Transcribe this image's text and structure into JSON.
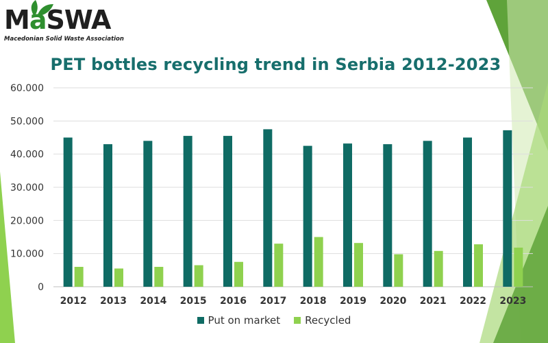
{
  "logo": {
    "text_before": "M",
    "text_highlight": "a",
    "text_after": "SWA",
    "subtitle": "Macedonian Solid Waste Association"
  },
  "colors": {
    "put_on_market": "#0f6b64",
    "recycled": "#8fd14f",
    "title": "#176e6c",
    "grid": "#dddddd",
    "deco_dark": "#5fa33a",
    "deco_light": "#a9d97a"
  },
  "chart_data": {
    "type": "bar",
    "title": "PET bottles recycling trend in Serbia 2012-2023",
    "xlabel": "",
    "ylabel": "",
    "ylim": [
      0,
      60000
    ],
    "yticks": [
      "0",
      "10.000",
      "20.000",
      "30.000",
      "40.000",
      "50.000",
      "60.000"
    ],
    "grid": true,
    "legend_position": "bottom",
    "categories": [
      "2012",
      "2013",
      "2014",
      "2015",
      "2016",
      "2017",
      "2018",
      "2019",
      "2020",
      "2021",
      "2022",
      "2023"
    ],
    "series": [
      {
        "name": "Put on market",
        "values": [
          45000,
          43000,
          44000,
          45500,
          45500,
          47500,
          42500,
          43200,
          43000,
          44000,
          45000,
          47200
        ]
      },
      {
        "name": "Recycled",
        "values": [
          6000,
          5500,
          6000,
          6500,
          7500,
          13000,
          15000,
          13200,
          9800,
          10800,
          12800,
          11800
        ]
      }
    ]
  }
}
